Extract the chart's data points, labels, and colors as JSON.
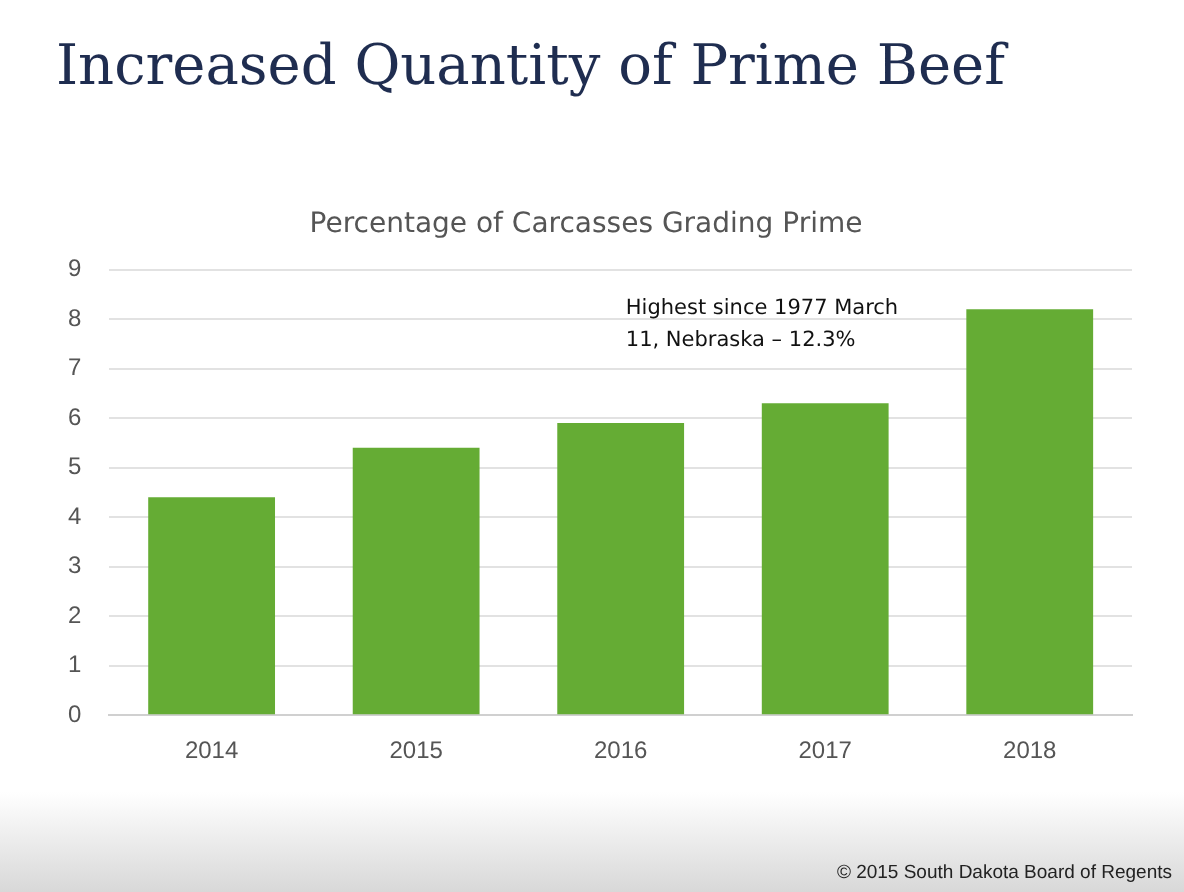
{
  "chart_data": {
    "type": "bar",
    "title": "Increased Quantity of Prime Beef",
    "subtitle": "Percentage of Carcasses Grading Prime",
    "categories": [
      "2014",
      "2015",
      "2016",
      "2017",
      "2018"
    ],
    "values": [
      4.4,
      5.4,
      5.9,
      6.3,
      8.2
    ],
    "color": "#65ac34",
    "ylim": [
      0,
      9
    ],
    "yticks": [
      0,
      1,
      2,
      3,
      4,
      5,
      6,
      7,
      8,
      9
    ],
    "grid": "y",
    "legend": false,
    "annotations": [
      "Highest since 1977 March 11, Nebraska – 12.3%",
      "© 2015 South Dakota Board of Regents"
    ]
  }
}
